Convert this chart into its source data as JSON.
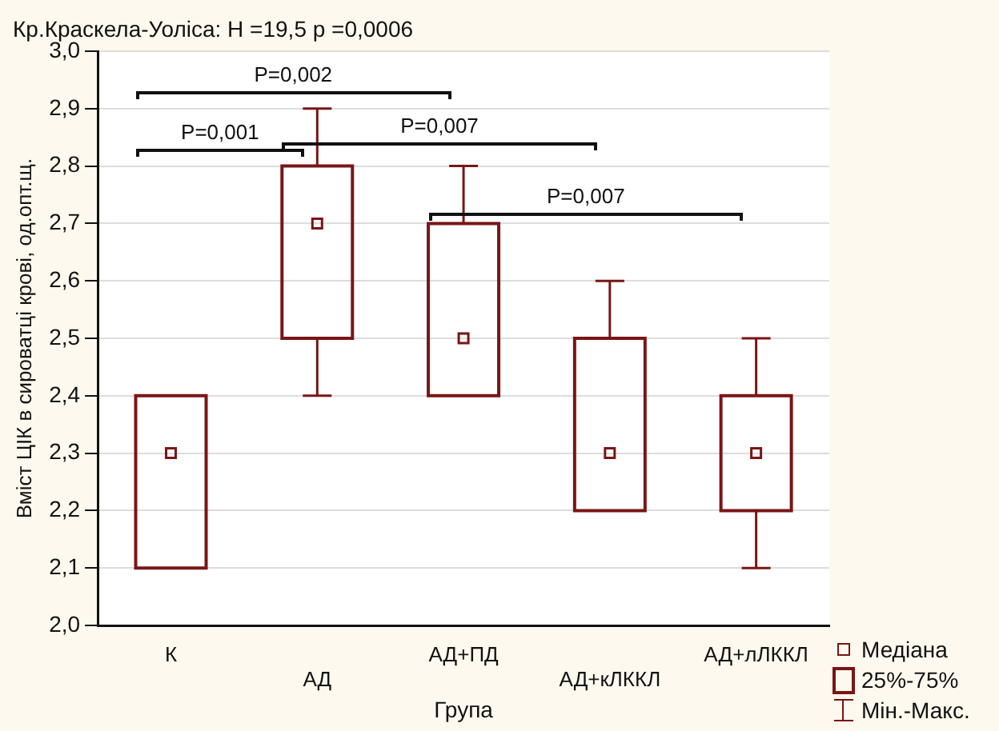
{
  "chart_data": {
    "type": "box",
    "title": "Кр.Краскела-Уоліса: H =19,5 p =0,0006",
    "xlabel": "Група",
    "ylabel": "Вміст ЦІК в сироватці крові, од.опт.щ.",
    "categories": [
      "К",
      "АД",
      "АД+ПД",
      "АД+кЛККЛ",
      "АД+лЛККЛ"
    ],
    "color": "#7a1515",
    "boxes": [
      {
        "low": 2.1,
        "q1": 2.1,
        "median": 2.3,
        "q3": 2.4,
        "high": 2.4
      },
      {
        "low": 2.4,
        "q1": 2.5,
        "median": 2.7,
        "q3": 2.8,
        "high": 2.9
      },
      {
        "low": 2.4,
        "q1": 2.4,
        "median": 2.5,
        "q3": 2.7,
        "high": 2.8
      },
      {
        "low": 2.2,
        "q1": 2.2,
        "median": 2.3,
        "q3": 2.5,
        "high": 2.6
      },
      {
        "low": 2.1,
        "q1": 2.2,
        "median": 2.3,
        "q3": 2.4,
        "high": 2.5
      }
    ],
    "ylim": [
      2.0,
      3.0
    ],
    "yticks": [
      {
        "value": 2.0,
        "label": "2,0"
      },
      {
        "value": 2.1,
        "label": "2,1"
      },
      {
        "value": 2.2,
        "label": "2,2"
      },
      {
        "value": 2.3,
        "label": "2,3"
      },
      {
        "value": 2.4,
        "label": "2,4"
      },
      {
        "value": 2.5,
        "label": "2,5"
      },
      {
        "value": 2.6,
        "label": "2,6"
      },
      {
        "value": 2.7,
        "label": "2,7"
      },
      {
        "value": 2.8,
        "label": "2,8"
      },
      {
        "value": 2.9,
        "label": "2,9"
      },
      {
        "value": 3.0,
        "label": "3,0"
      }
    ],
    "grid": "y",
    "annotations": [
      "P=0,002",
      "P=0,001",
      "P=0,007",
      "P=0,007",
      "Медіана",
      "25%-75%",
      "Мін.-Макс."
    ]
  }
}
